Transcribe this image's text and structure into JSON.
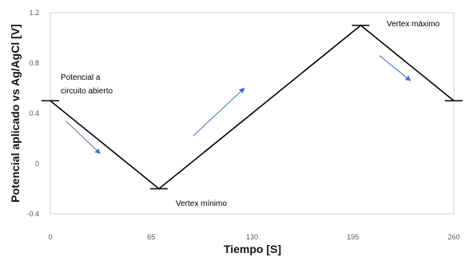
{
  "chart_data": {
    "type": "line",
    "xlabel": "Tiempo [S]",
    "ylabel": "Potencial aplicado  vs Ag/AgCl [V]",
    "xlim": [
      0,
      260
    ],
    "ylim": [
      -0.4,
      1.2
    ],
    "x_ticks": [
      "0",
      "65",
      "130",
      "195",
      "260"
    ],
    "y_ticks": [
      "1.2",
      "0.8",
      "0.4",
      "0",
      "-0.4"
    ],
    "grid": false,
    "legend": "none",
    "series": [
      {
        "color": "#000000",
        "x": [
          0,
          70,
          200,
          260
        ],
        "y": [
          0.5,
          -0.2,
          1.1,
          0.5
        ]
      }
    ],
    "markers": [
      {
        "x": 0,
        "y": 0.5
      },
      {
        "x": 70,
        "y": -0.2
      },
      {
        "x": 200,
        "y": 1.1
      },
      {
        "x": 260,
        "y": 0.5
      }
    ],
    "annotations": {
      "open_circuit_line1": "Potencial a",
      "open_circuit_line2": "circuito abierto",
      "vertex_min": "Vertex mínimo",
      "vertex_max": "Vertex máximo"
    },
    "arrow_color": "#4472C4",
    "arrows": [
      {
        "from": [
          10,
          0.34
        ],
        "to": [
          32,
          0.08
        ]
      },
      {
        "from": [
          92,
          0.22
        ],
        "to": [
          125,
          0.6
        ]
      },
      {
        "from": [
          212,
          0.86
        ],
        "to": [
          232,
          0.66
        ]
      }
    ]
  }
}
